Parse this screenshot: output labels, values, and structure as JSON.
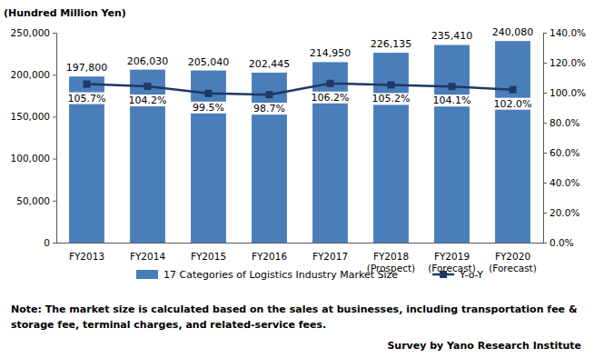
{
  "chart_data": {
    "type": "bar",
    "y_label": "(Hundred Million Yen)",
    "categories": [
      "FY2013",
      "FY2014",
      "FY2015",
      "FY2016",
      "FY2017",
      "FY2018\n(Prospect)",
      "FY2019\n(Forecast)",
      "FY2020\n(Forecast)"
    ],
    "series": [
      {
        "name": "17 Categories of Logistics Industry Market Size",
        "type": "bar",
        "color": "#4a7ebb",
        "values": [
          197800,
          206030,
          205040,
          202445,
          214950,
          226135,
          235410,
          240080
        ],
        "value_labels": [
          "197,800",
          "206,030",
          "205,040",
          "202,445",
          "214,950",
          "226,135",
          "235,410",
          "240,080"
        ]
      },
      {
        "name": "Y-o-Y",
        "type": "line",
        "axis": "y2",
        "color": "#1f3864",
        "marker": "square",
        "values": [
          105.7,
          104.2,
          99.5,
          98.7,
          106.2,
          105.2,
          104.1,
          102.0
        ],
        "value_labels": [
          "105.7%",
          "104.2%",
          "99.5%",
          "98.7%",
          "106.2%",
          "105.2%",
          "104.1%",
          "102.0%"
        ]
      }
    ],
    "ylim": [
      0,
      250000
    ],
    "yticks": [
      0,
      {
        "value": 50000,
        "label": "50,000"
      },
      {
        "value": 100000,
        "label": "100,000"
      },
      {
        "value": 150000,
        "label": "150,000"
      },
      {
        "value": 200000,
        "label": "200,000"
      },
      {
        "value": 250000,
        "label": "250,000"
      }
    ],
    "y2lim": [
      0,
      140
    ],
    "y2ticks": [
      {
        "value": 0,
        "label": "0.0%"
      },
      {
        "value": 20,
        "label": "20.0%"
      },
      {
        "value": 40,
        "label": "40.0%"
      },
      {
        "value": 60,
        "label": "60.0%"
      },
      {
        "value": 80,
        "label": "80.0%"
      },
      {
        "value": 100,
        "label": "100.0%"
      },
      {
        "value": 120,
        "label": "120.0%"
      },
      {
        "value": 140,
        "label": "140.0%"
      }
    ],
    "grid": false,
    "legend": "bottom",
    "data_labels": true,
    "annotations": [
      "Note:  The market size is calculated based on the sales at businesses, including  transportation fee &",
      "storage fee, terminal charges, and related-service fees.",
      "Survey by Yano Research Institute"
    ]
  }
}
